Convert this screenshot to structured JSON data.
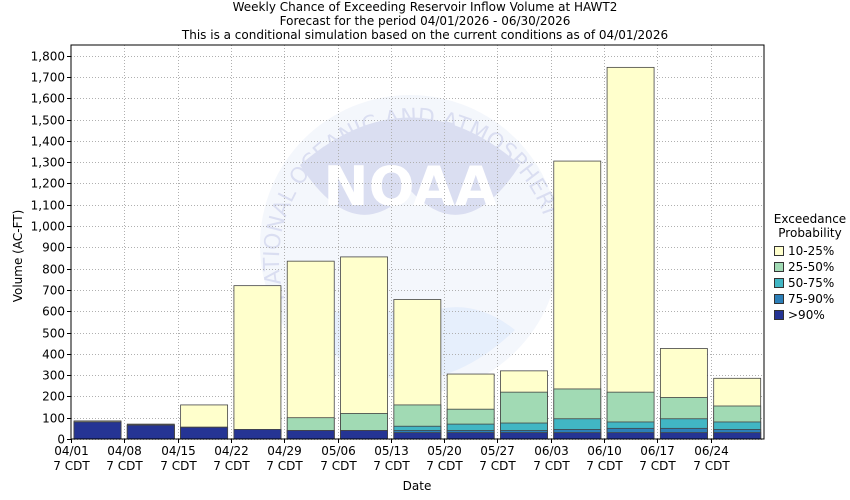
{
  "titles": {
    "line1": "Weekly Chance of Exceeding Reservoir Inflow Volume at HAWT2",
    "line2": "Forecast for the period 04/01/2026 - 06/30/2026",
    "line3": "This is a conditional simulation based on the current conditions as of 04/01/2026"
  },
  "watermark": {
    "logo_text": "NOAA",
    "ring_text": "NATIONAL OCEANIC AND ATMOSPHERIC ADMINISTRATION"
  },
  "legend": {
    "title_line1": "Exceedance",
    "title_line2": "Probability",
    "items": [
      {
        "label": "10-25%",
        "color": "#ffffcc"
      },
      {
        "label": "25-50%",
        "color": "#a1dab4"
      },
      {
        "label": "50-75%",
        "color": "#41b6c4"
      },
      {
        "label": "75-90%",
        "color": "#2c7fb8"
      },
      {
        "label": ">90%",
        "color": "#253494"
      }
    ]
  },
  "chart_data": {
    "type": "bar",
    "xlabel": "Date",
    "ylabel": "Volume (AC-FT)",
    "ylim": [
      0,
      1850
    ],
    "yticks": [
      0,
      100,
      200,
      300,
      400,
      500,
      600,
      700,
      800,
      900,
      1000,
      1100,
      1200,
      1300,
      1400,
      1500,
      1600,
      1700,
      1800
    ],
    "ytick_labels": [
      "0",
      "100",
      "200",
      "300",
      "400",
      "500",
      "600",
      "700",
      "800",
      "900",
      "1,000",
      "1,100",
      "1,200",
      "1,300",
      "1,400",
      "1,500",
      "1,600",
      "1,700",
      "1,800"
    ],
    "categories": [
      "04/01",
      "04/08",
      "04/15",
      "04/22",
      "04/29",
      "05/06",
      "05/13",
      "05/20",
      "05/27",
      "06/03",
      "06/10",
      "06/17",
      "06/24"
    ],
    "category_sublabel": "7 CDT",
    "grid": true,
    "series": [
      {
        "name": ">90%",
        "color": "#253494",
        "values": [
          80,
          65,
          55,
          45,
          40,
          40,
          30,
          30,
          30,
          30,
          30,
          30,
          30
        ]
      },
      {
        "name": "75-90%",
        "color": "#2c7fb8",
        "values": [
          80,
          65,
          55,
          45,
          40,
          40,
          40,
          40,
          40,
          45,
          50,
          50,
          45
        ]
      },
      {
        "name": "50-75%",
        "color": "#41b6c4",
        "values": [
          80,
          65,
          55,
          45,
          40,
          40,
          60,
          70,
          75,
          95,
          80,
          95,
          80
        ]
      },
      {
        "name": "25-50%",
        "color": "#a1dab4",
        "values": [
          80,
          65,
          55,
          45,
          100,
          120,
          160,
          140,
          220,
          235,
          220,
          195,
          155
        ]
      },
      {
        "name": "10-25%",
        "color": "#ffffcc",
        "values": [
          85,
          70,
          160,
          720,
          835,
          855,
          655,
          305,
          320,
          1305,
          1745,
          425,
          285
        ]
      }
    ]
  }
}
